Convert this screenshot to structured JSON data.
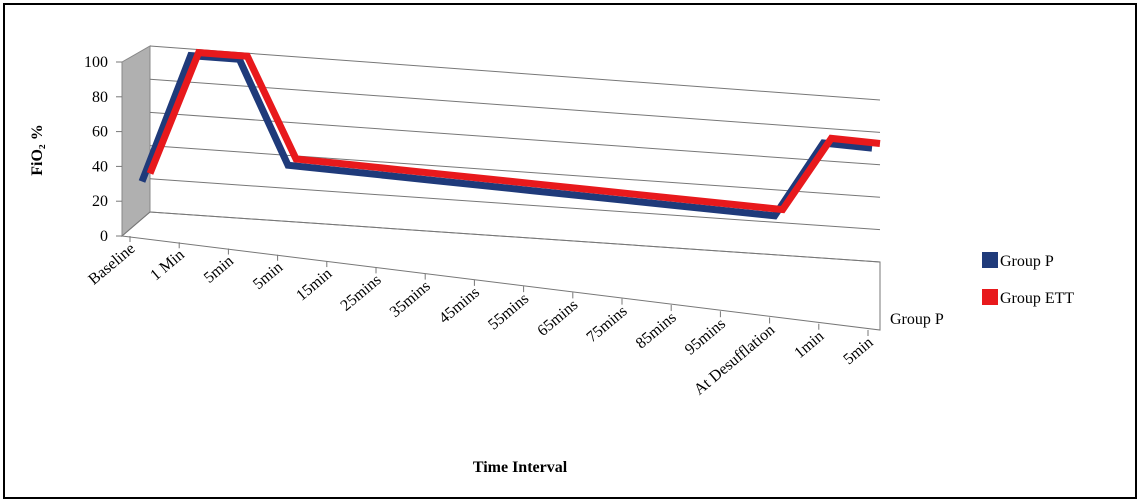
{
  "chart_data": {
    "type": "line",
    "y_label": "FiO₂ %",
    "x_label": "Time Interval",
    "categories": [
      "Baseline",
      "1 Min",
      "5min",
      "5min",
      "15min",
      "25mins",
      "35mins",
      "45mins",
      "55mins",
      "65mins",
      "75mins",
      "85mins",
      "95mins",
      "At Desufflation",
      "1min",
      "5min"
    ],
    "series": [
      {
        "name": "Group P",
        "color": "#1f3a7a",
        "values": [
          22,
          100,
          100,
          38,
          37,
          36,
          35,
          34,
          33,
          32,
          31,
          30,
          29,
          28,
          75,
          74
        ]
      },
      {
        "name": "Group ETT",
        "color": "#e8191c",
        "values": [
          25,
          100,
          100,
          40,
          39,
          38,
          37,
          36,
          35,
          34,
          33,
          32,
          31,
          30,
          76,
          75
        ]
      }
    ],
    "ylim": [
      0,
      100
    ],
    "yticks": [
      0,
      20,
      40,
      60,
      80,
      100
    ],
    "grid": true
  }
}
